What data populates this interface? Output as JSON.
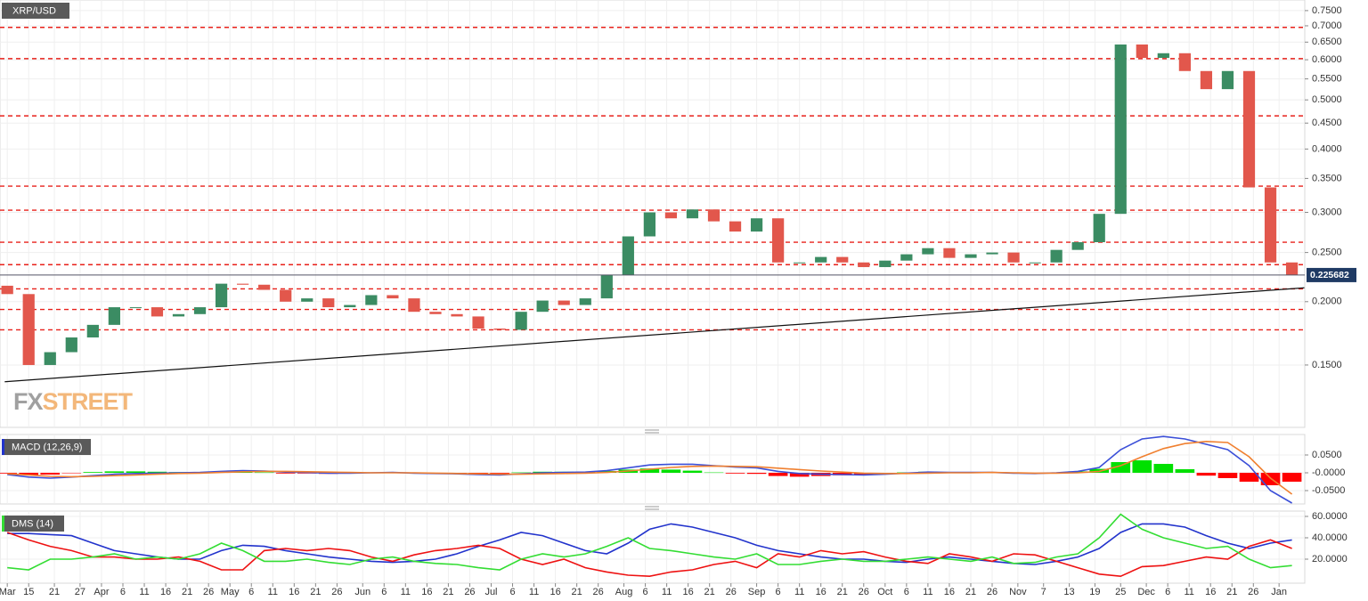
{
  "chart_data": [
    {
      "type": "candlestick",
      "title": "XRP/USD",
      "logo": [
        "FX",
        "STREET"
      ],
      "x": [
        10,
        15,
        20,
        25,
        30,
        35,
        40,
        45,
        50,
        55,
        60,
        65,
        70,
        75,
        80,
        85,
        90,
        95,
        100,
        105,
        110,
        115,
        120,
        125,
        130,
        135,
        140,
        145,
        150,
        155,
        160,
        165,
        170,
        175,
        180,
        185,
        190,
        195,
        200,
        205,
        210,
        215,
        220,
        225,
        230,
        235,
        240,
        245,
        250,
        255,
        260,
        265,
        270,
        275,
        280,
        285,
        290,
        295,
        300,
        305,
        310
      ],
      "open": [
        0.215,
        0.207,
        0.15,
        0.159,
        0.17,
        0.18,
        0.195,
        0.195,
        0.187,
        0.189,
        0.195,
        0.217,
        0.216,
        0.211,
        0.2,
        0.203,
        0.195,
        0.197,
        0.206,
        0.203,
        0.191,
        0.189,
        0.187,
        0.177,
        0.176,
        0.191,
        0.201,
        0.197,
        0.203,
        0.226,
        0.269,
        0.3,
        0.292,
        0.304,
        0.288,
        0.275,
        0.292,
        0.239,
        0.239,
        0.245,
        0.239,
        0.234,
        0.241,
        0.248,
        0.255,
        0.244,
        0.248,
        0.25,
        0.239,
        0.239,
        0.253,
        0.262,
        0.298,
        0.643,
        0.605,
        0.618,
        0.57,
        0.525,
        0.57,
        0.336,
        0.239
      ],
      "close": [
        0.207,
        0.15,
        0.159,
        0.17,
        0.18,
        0.195,
        0.195,
        0.187,
        0.189,
        0.195,
        0.217,
        0.216,
        0.211,
        0.2,
        0.203,
        0.195,
        0.197,
        0.206,
        0.203,
        0.191,
        0.189,
        0.187,
        0.177,
        0.176,
        0.191,
        0.201,
        0.197,
        0.203,
        0.226,
        0.269,
        0.3,
        0.292,
        0.304,
        0.288,
        0.275,
        0.292,
        0.239,
        0.239,
        0.245,
        0.239,
        0.234,
        0.241,
        0.248,
        0.255,
        0.244,
        0.248,
        0.25,
        0.239,
        0.239,
        0.253,
        0.262,
        0.298,
        0.643,
        0.605,
        0.618,
        0.57,
        0.525,
        0.57,
        0.336,
        0.239,
        0.226
      ],
      "up_color": "#3b8c63",
      "down_color": "#e2574c",
      "log_scale": true,
      "ylim": [
        0.113,
        0.787
      ],
      "yticks": [
        {
          "value": 0.75,
          "label": "0.7500"
        },
        {
          "value": 0.7,
          "label": "0.7000"
        },
        {
          "value": 0.65,
          "label": "0.6500"
        },
        {
          "value": 0.6,
          "label": "0.6000"
        },
        {
          "value": 0.55,
          "label": "0.5500"
        },
        {
          "value": 0.5,
          "label": "0.5000"
        },
        {
          "value": 0.45,
          "label": "0.4500"
        },
        {
          "value": 0.4,
          "label": "0.4000"
        },
        {
          "value": 0.35,
          "label": "0.3500"
        },
        {
          "value": 0.3,
          "label": "0.3000"
        },
        {
          "value": 0.25,
          "label": "0.2500"
        },
        {
          "value": 0.2,
          "label": "0.2000"
        },
        {
          "value": 0.15,
          "label": "0.1500"
        }
      ],
      "xlim": [
        8.3,
        313
      ],
      "xticks": [
        {
          "value": 10,
          "label": "Mar"
        },
        {
          "value": 15,
          "label": "15"
        },
        {
          "value": 21,
          "label": "21"
        },
        {
          "value": 27,
          "label": "27"
        },
        {
          "value": 32,
          "label": "Apr"
        },
        {
          "value": 37,
          "label": "6"
        },
        {
          "value": 42,
          "label": "11"
        },
        {
          "value": 47,
          "label": "16"
        },
        {
          "value": 52,
          "label": "21"
        },
        {
          "value": 57,
          "label": "26"
        },
        {
          "value": 62,
          "label": "May"
        },
        {
          "value": 67,
          "label": "6"
        },
        {
          "value": 72,
          "label": "11"
        },
        {
          "value": 77,
          "label": "16"
        },
        {
          "value": 82,
          "label": "21"
        },
        {
          "value": 87,
          "label": "26"
        },
        {
          "value": 93,
          "label": "Jun"
        },
        {
          "value": 98,
          "label": "6"
        },
        {
          "value": 103,
          "label": "11"
        },
        {
          "value": 108,
          "label": "16"
        },
        {
          "value": 113,
          "label": "21"
        },
        {
          "value": 118,
          "label": "26"
        },
        {
          "value": 123,
          "label": "Jul"
        },
        {
          "value": 128,
          "label": "6"
        },
        {
          "value": 133,
          "label": "11"
        },
        {
          "value": 138,
          "label": "16"
        },
        {
          "value": 143,
          "label": "21"
        },
        {
          "value": 148,
          "label": "26"
        },
        {
          "value": 154,
          "label": "Aug"
        },
        {
          "value": 159,
          "label": "6"
        },
        {
          "value": 164,
          "label": "11"
        },
        {
          "value": 169,
          "label": "16"
        },
        {
          "value": 174,
          "label": "21"
        },
        {
          "value": 179,
          "label": "26"
        },
        {
          "value": 185,
          "label": "Sep"
        },
        {
          "value": 190,
          "label": "6"
        },
        {
          "value": 195,
          "label": "11"
        },
        {
          "value": 200,
          "label": "16"
        },
        {
          "value": 205,
          "label": "21"
        },
        {
          "value": 210,
          "label": "26"
        },
        {
          "value": 215,
          "label": "Oct"
        },
        {
          "value": 220,
          "label": "6"
        },
        {
          "value": 225,
          "label": "11"
        },
        {
          "value": 230,
          "label": "16"
        },
        {
          "value": 235,
          "label": "21"
        },
        {
          "value": 240,
          "label": "26"
        },
        {
          "value": 246,
          "label": "Nov"
        },
        {
          "value": 252,
          "label": "7"
        },
        {
          "value": 258,
          "label": "13"
        },
        {
          "value": 264,
          "label": "19"
        },
        {
          "value": 270,
          "label": "25"
        },
        {
          "value": 276,
          "label": "Dec"
        },
        {
          "value": 281,
          "label": "6"
        },
        {
          "value": 286,
          "label": "11"
        },
        {
          "value": 291,
          "label": "16"
        },
        {
          "value": 296,
          "label": "21"
        },
        {
          "value": 301,
          "label": "26"
        },
        {
          "value": 307,
          "label": "Jan"
        }
      ],
      "grid": true,
      "levels": {
        "color": "#e8201a",
        "values": [
          0.695,
          0.603,
          0.465,
          0.338,
          0.303,
          0.262,
          0.2366,
          0.212,
          0.193,
          0.176
        ]
      },
      "trend_line": {
        "color": "#111111",
        "x": [
          9.4,
          312.9
        ],
        "values": [
          0.139,
          0.213
        ]
      },
      "last_price": {
        "value": 0.225682,
        "label": "0.225682",
        "color": "#1f3a64"
      }
    },
    {
      "type": "macd",
      "title": "MACD (12,26,9)",
      "swatch": "#2233cc",
      "x": [
        10,
        15,
        20,
        25,
        30,
        35,
        40,
        45,
        50,
        55,
        60,
        65,
        70,
        75,
        80,
        85,
        90,
        95,
        100,
        105,
        110,
        115,
        120,
        125,
        130,
        135,
        140,
        145,
        150,
        155,
        160,
        165,
        170,
        175,
        180,
        185,
        190,
        195,
        200,
        205,
        210,
        215,
        220,
        225,
        230,
        235,
        240,
        245,
        250,
        255,
        260,
        265,
        270,
        275,
        280,
        285,
        290,
        295,
        300,
        305,
        310
      ],
      "series": [
        {
          "color": "#3b4fd8",
          "values": [
            -0.005,
            -0.012,
            -0.015,
            -0.012,
            -0.008,
            -0.004,
            -0.002,
            -0.001,
            0.0,
            0.001,
            0.004,
            0.006,
            0.005,
            0.002,
            0.001,
            -0.001,
            -0.001,
            0.0,
            0.001,
            -0.001,
            -0.002,
            -0.003,
            -0.005,
            -0.006,
            -0.003,
            0.0,
            0.001,
            0.002,
            0.006,
            0.014,
            0.022,
            0.024,
            0.024,
            0.02,
            0.016,
            0.014,
            0.004,
            -0.002,
            -0.004,
            -0.005,
            -0.006,
            -0.004,
            -0.001,
            0.002,
            0.001,
            0.001,
            0.001,
            -0.001,
            -0.002,
            0.0,
            0.004,
            0.015,
            0.065,
            0.095,
            0.102,
            0.095,
            0.08,
            0.065,
            0.02,
            -0.05,
            -0.085
          ]
        },
        {
          "color": "#f08030",
          "values": [
            -0.003,
            -0.006,
            -0.01,
            -0.011,
            -0.01,
            -0.008,
            -0.006,
            -0.004,
            -0.002,
            -0.001,
            0.001,
            0.003,
            0.004,
            0.004,
            0.003,
            0.002,
            0.001,
            0.0,
            0.0,
            0.0,
            -0.001,
            -0.002,
            -0.003,
            -0.004,
            -0.004,
            -0.003,
            -0.002,
            -0.001,
            0.001,
            0.005,
            0.01,
            0.015,
            0.018,
            0.019,
            0.018,
            0.017,
            0.013,
            0.009,
            0.005,
            0.002,
            -0.001,
            -0.002,
            -0.002,
            -0.001,
            0.0,
            0.0,
            0.001,
            0.0,
            -0.001,
            -0.001,
            0.0,
            0.004,
            0.02,
            0.045,
            0.068,
            0.082,
            0.088,
            0.085,
            0.045,
            -0.015,
            -0.06
          ]
        }
      ],
      "histogram": {
        "up_color": "#00e000",
        "down_color": "#ff0000",
        "values": [
          -0.002,
          -0.006,
          -0.005,
          -0.001,
          0.002,
          0.004,
          0.004,
          0.003,
          0.002,
          0.002,
          0.003,
          0.003,
          0.001,
          -0.002,
          -0.002,
          -0.003,
          -0.002,
          0.0,
          0.001,
          -0.001,
          -0.001,
          -0.001,
          -0.002,
          -0.002,
          0.001,
          0.003,
          0.003,
          0.003,
          0.005,
          0.009,
          0.012,
          0.009,
          0.006,
          0.001,
          -0.002,
          -0.003,
          -0.009,
          -0.011,
          -0.009,
          -0.007,
          -0.005,
          -0.002,
          0.001,
          0.003,
          0.001,
          0.001,
          0.0,
          -0.001,
          -0.001,
          0.001,
          0.004,
          0.011,
          0.03,
          0.035,
          0.025,
          0.01,
          -0.008,
          -0.015,
          -0.025,
          -0.035,
          -0.025
        ]
      },
      "ylim": [
        -0.0875,
        0.1075
      ],
      "yticks": [
        {
          "value": 0.05,
          "label": "0.0500"
        },
        {
          "value": 0,
          "label": "-0.0000"
        },
        {
          "value": -0.05,
          "label": "-0.0500"
        }
      ],
      "grid": true
    },
    {
      "type": "dms",
      "title": "DMS (14)",
      "swatch": "#33dd33",
      "x": [
        10,
        15,
        20,
        25,
        30,
        35,
        40,
        45,
        50,
        55,
        60,
        65,
        70,
        75,
        80,
        85,
        90,
        95,
        100,
        105,
        110,
        115,
        120,
        125,
        130,
        135,
        140,
        145,
        150,
        155,
        160,
        165,
        170,
        175,
        180,
        185,
        190,
        195,
        200,
        205,
        210,
        215,
        220,
        225,
        230,
        235,
        240,
        245,
        250,
        255,
        260,
        265,
        270,
        275,
        280,
        285,
        290,
        295,
        300,
        305,
        310
      ],
      "series": [
        {
          "color": "#2233cc",
          "values": [
            44,
            44,
            43,
            42,
            35,
            28,
            25,
            22,
            20,
            20,
            28,
            33,
            32,
            28,
            25,
            22,
            20,
            18,
            17,
            18,
            20,
            25,
            32,
            38,
            45,
            42,
            35,
            28,
            25,
            35,
            48,
            53,
            50,
            45,
            40,
            33,
            28,
            25,
            22,
            20,
            20,
            18,
            17,
            20,
            22,
            20,
            18,
            16,
            15,
            18,
            22,
            30,
            45,
            53,
            53,
            50,
            42,
            35,
            30,
            35,
            38
          ]
        },
        {
          "color": "#ee1111",
          "values": [
            45,
            38,
            32,
            28,
            22,
            22,
            20,
            20,
            22,
            18,
            10,
            10,
            28,
            30,
            28,
            30,
            28,
            22,
            18,
            24,
            28,
            30,
            33,
            30,
            20,
            15,
            20,
            12,
            8,
            5,
            4,
            8,
            10,
            15,
            18,
            12,
            25,
            22,
            28,
            25,
            27,
            22,
            18,
            16,
            25,
            22,
            18,
            25,
            24,
            18,
            12,
            6,
            4,
            13,
            14,
            18,
            22,
            20,
            32,
            38,
            30
          ]
        },
        {
          "color": "#33dd33",
          "values": [
            12,
            10,
            20,
            20,
            22,
            25,
            20,
            22,
            20,
            25,
            35,
            28,
            18,
            18,
            20,
            17,
            15,
            20,
            22,
            18,
            16,
            15,
            12,
            10,
            20,
            25,
            22,
            25,
            32,
            40,
            30,
            28,
            25,
            22,
            20,
            25,
            15,
            15,
            18,
            20,
            18,
            18,
            20,
            22,
            20,
            18,
            22,
            16,
            17,
            22,
            25,
            40,
            62,
            48,
            40,
            35,
            30,
            32,
            20,
            12,
            14
          ]
        }
      ],
      "ylim": [
        -2.5,
        65
      ],
      "yticks": [
        {
          "value": 60,
          "label": "60.0000"
        },
        {
          "value": 40,
          "label": "40.0000"
        },
        {
          "value": 20,
          "label": "20.0000"
        }
      ],
      "grid": true
    }
  ]
}
